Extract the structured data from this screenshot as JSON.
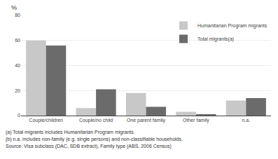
{
  "chart_data": {
    "type": "bar",
    "categories": [
      "Couple/children",
      "Couple/no child",
      "One parent family",
      "Other family",
      "n.a."
    ],
    "series": [
      {
        "name": "Humanitarian Program migrants",
        "color": "#c8c8c8",
        "values": [
          60,
          6,
          18,
          3,
          12
        ]
      },
      {
        "name": "Total migrants(a)",
        "color": "#6b6b6b",
        "values": [
          56,
          21,
          7,
          1,
          14
        ]
      }
    ],
    "ylabel": "%",
    "ylim": [
      0,
      80
    ],
    "yticks": [
      0,
      20,
      40,
      60,
      80
    ],
    "grid": true,
    "legend": "upper right",
    "annotations": [
      "(a) Total migrants includes Humanitarian Program migrants.",
      "(b) n.a. includes non-family (e.g. single persons) and non-classifiable households.",
      "Source: Visa subclass (DAC, SDB extract), Family type (ABS, 2006 Census)"
    ]
  }
}
